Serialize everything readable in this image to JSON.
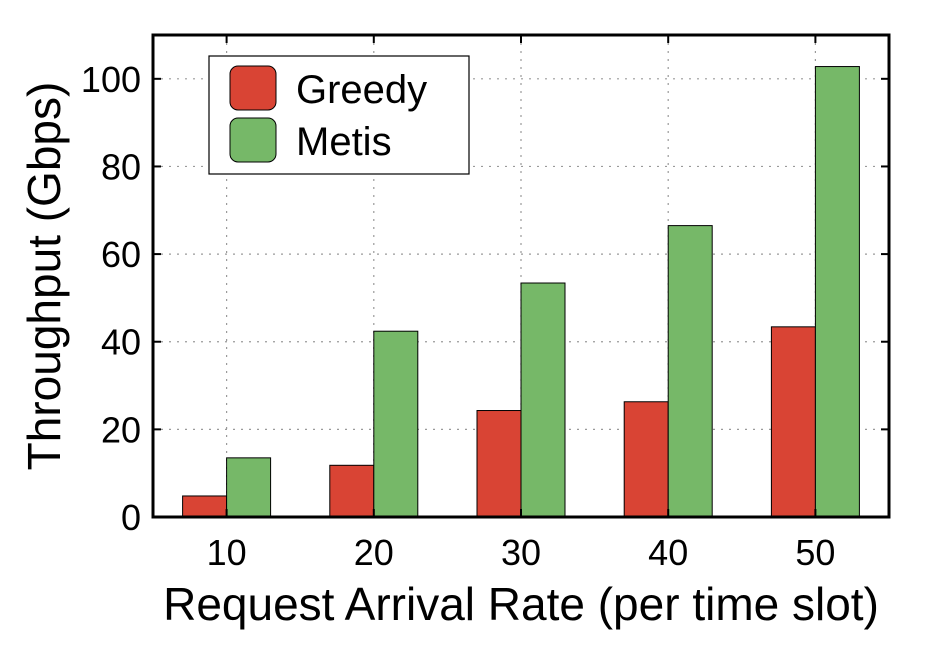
{
  "chart_data": {
    "type": "bar",
    "title": "",
    "xlabel": "Request Arrival Rate (per time slot)",
    "ylabel": "Throughput (Gbps)",
    "categories": [
      "10",
      "20",
      "30",
      "40",
      "50"
    ],
    "series": [
      {
        "name": "Greedy",
        "color": "#d94434",
        "values": [
          4.8,
          11.8,
          24.3,
          26.3,
          43.4
        ]
      },
      {
        "name": "Metis",
        "color": "#76b868",
        "values": [
          13.5,
          42.4,
          53.4,
          66.5,
          102.8
        ]
      }
    ],
    "ylim": [
      0,
      110
    ],
    "yticks": [
      0,
      20,
      40,
      60,
      80,
      100
    ],
    "grid": true,
    "legend_position": "top-left"
  }
}
